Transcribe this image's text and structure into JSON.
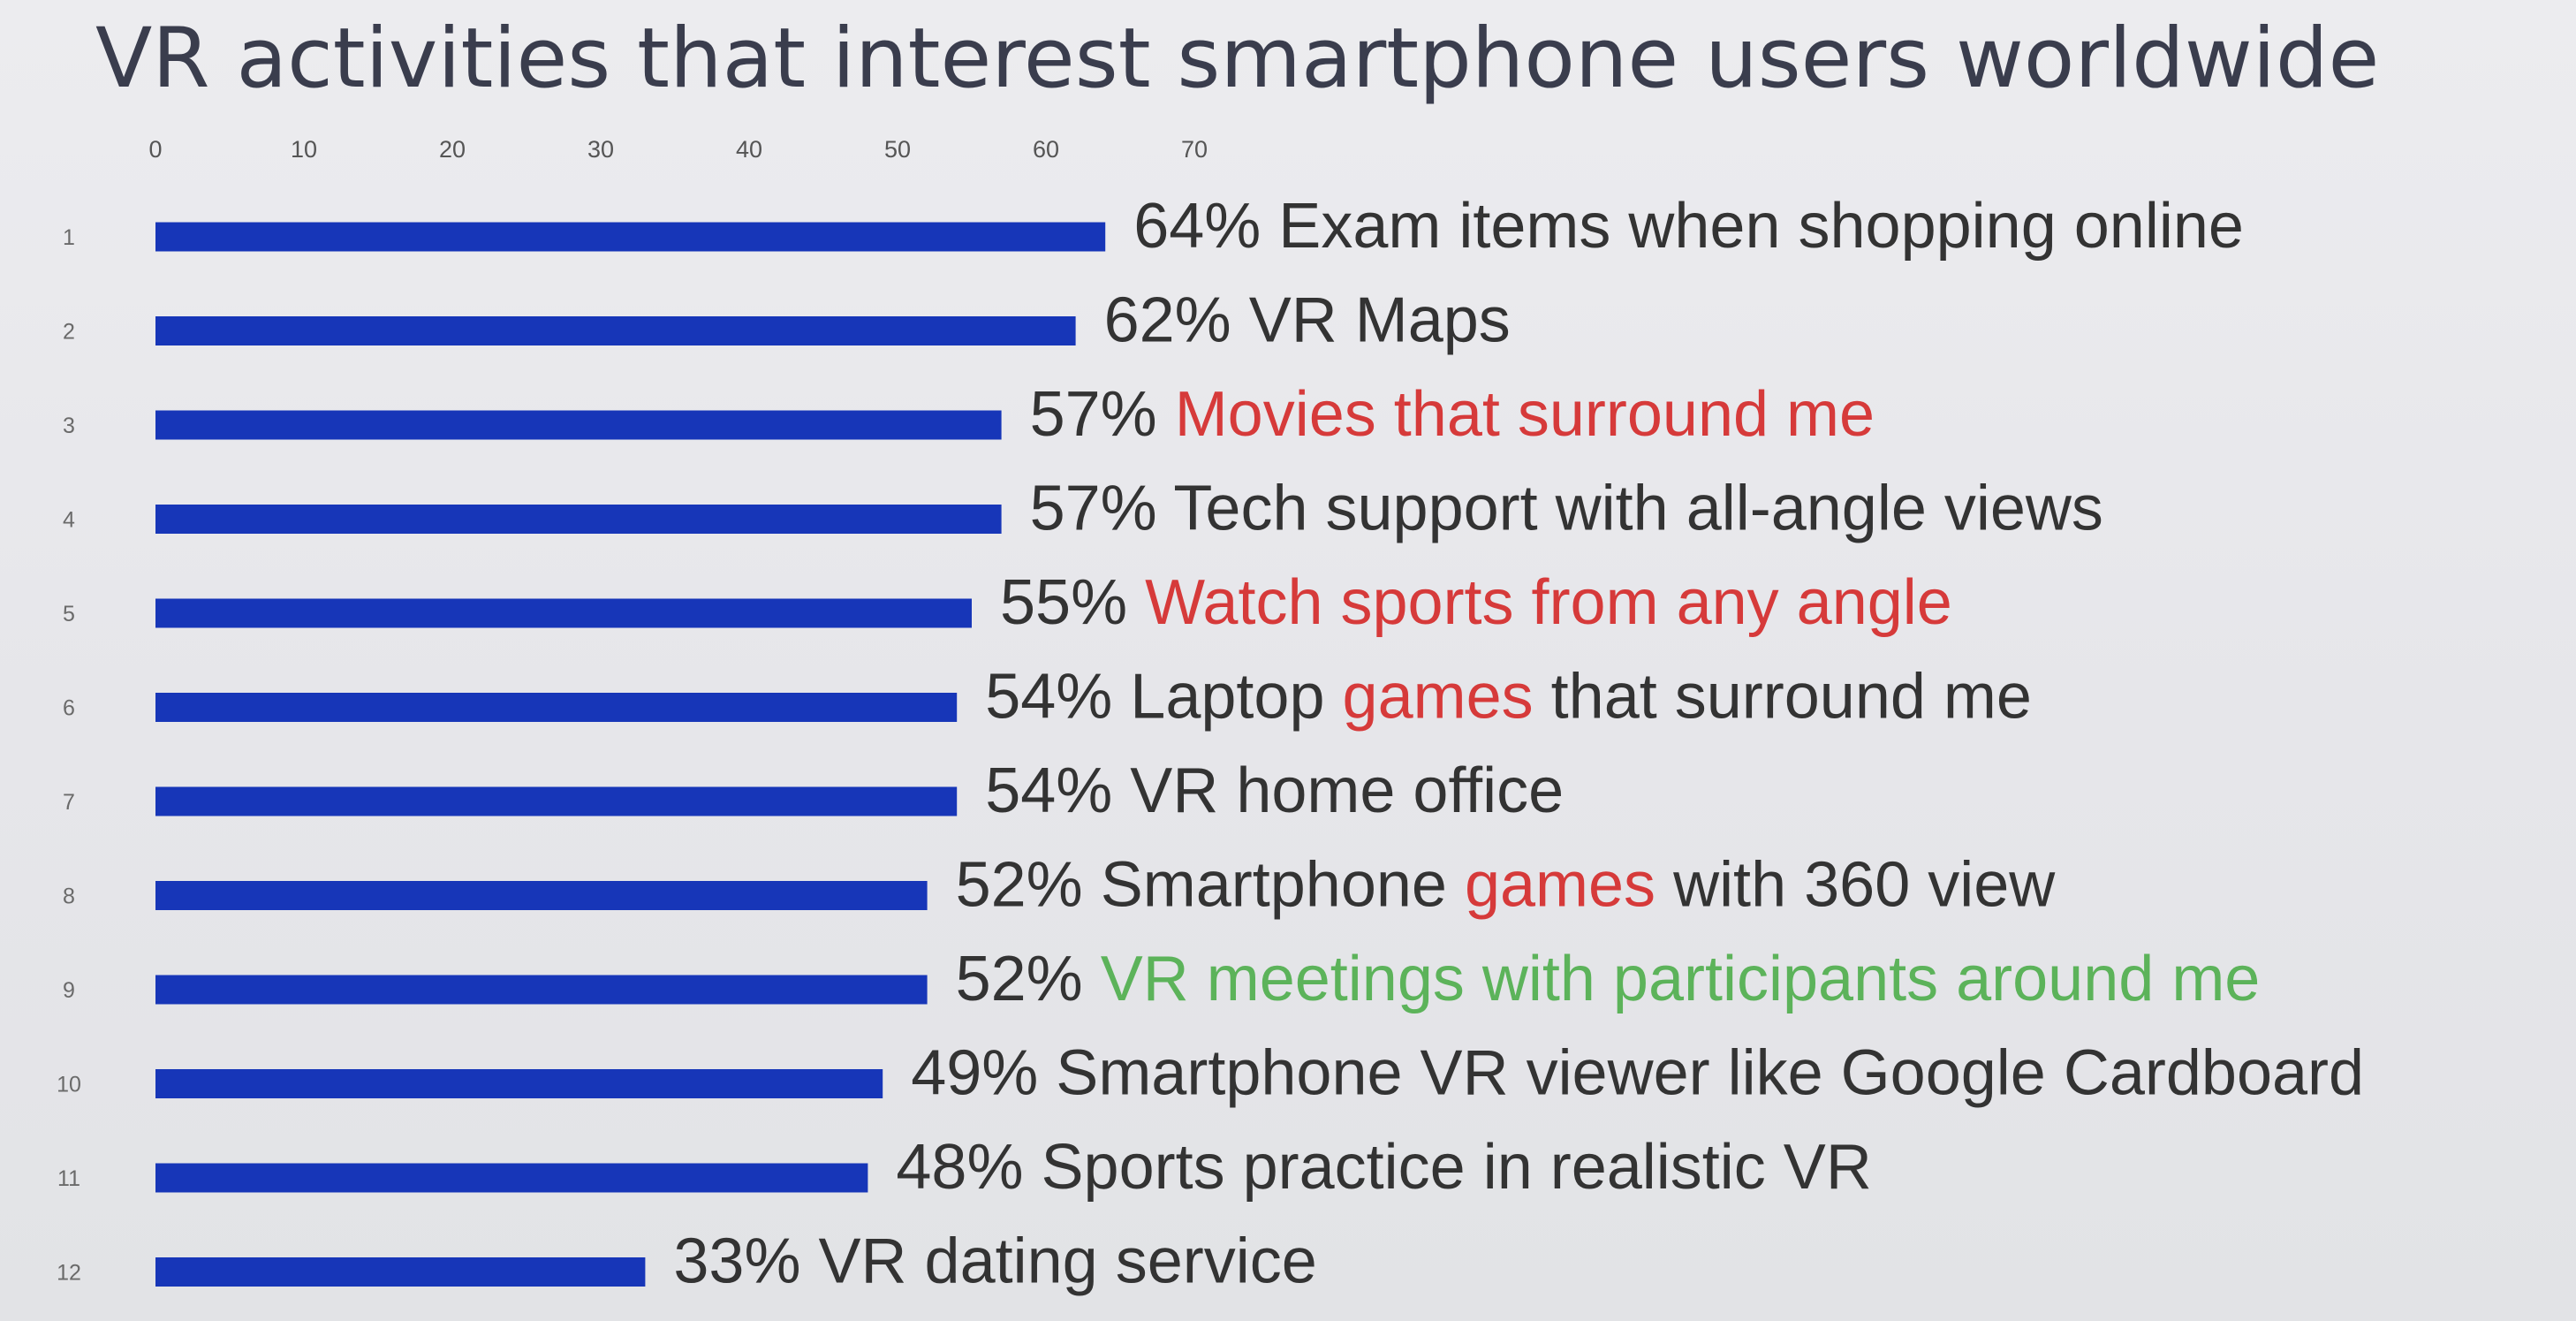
{
  "colors": {
    "bar": "#1736b8",
    "text": "#333333",
    "highlight_red": "#d63a3a",
    "highlight_green": "#5cb35a"
  },
  "chart_data": {
    "type": "bar",
    "orientation": "horizontal",
    "title": "VR activities that interest smartphone users worldwide",
    "xlim": [
      0,
      70
    ],
    "x_ticks": [
      0,
      10,
      20,
      30,
      40,
      50,
      60,
      70
    ],
    "x_axis_position": "top",
    "grid": false,
    "categories": [
      "1",
      "2",
      "3",
      "4",
      "5",
      "6",
      "7",
      "8",
      "9",
      "10",
      "11",
      "12"
    ],
    "values": [
      64,
      62,
      57,
      57,
      55,
      54,
      54,
      52,
      52,
      49,
      48,
      33
    ],
    "data_labels": [
      [
        {
          "text": "64% Exam items when shopping online",
          "color": "#333333"
        }
      ],
      [
        {
          "text": "62% VR Maps",
          "color": "#333333"
        }
      ],
      [
        {
          "text": "57% ",
          "color": "#333333"
        },
        {
          "text": "Movies that surround me",
          "color": "#d63a3a"
        }
      ],
      [
        {
          "text": "57% Tech support with all-angle views",
          "color": "#333333"
        }
      ],
      [
        {
          "text": "55% ",
          "color": "#333333"
        },
        {
          "text": "Watch sports from any angle",
          "color": "#d63a3a"
        }
      ],
      [
        {
          "text": "54% Laptop ",
          "color": "#333333"
        },
        {
          "text": "games",
          "color": "#d63a3a"
        },
        {
          "text": " that surround me",
          "color": "#333333"
        }
      ],
      [
        {
          "text": "54% VR home office",
          "color": "#333333"
        }
      ],
      [
        {
          "text": "52% Smartphone ",
          "color": "#333333"
        },
        {
          "text": "games",
          "color": "#d63a3a"
        },
        {
          "text": " with 360 view",
          "color": "#333333"
        }
      ],
      [
        {
          "text": "52% ",
          "color": "#333333"
        },
        {
          "text": "VR meetings with participants around me",
          "color": "#5cb35a"
        }
      ],
      [
        {
          "text": "49% Smartphone VR viewer like Google Cardboard",
          "color": "#333333"
        }
      ],
      [
        {
          "text": "48% Sports practice in realistic VR",
          "color": "#333333"
        }
      ],
      [
        {
          "text": "33% VR dating service",
          "color": "#333333"
        }
      ]
    ]
  }
}
